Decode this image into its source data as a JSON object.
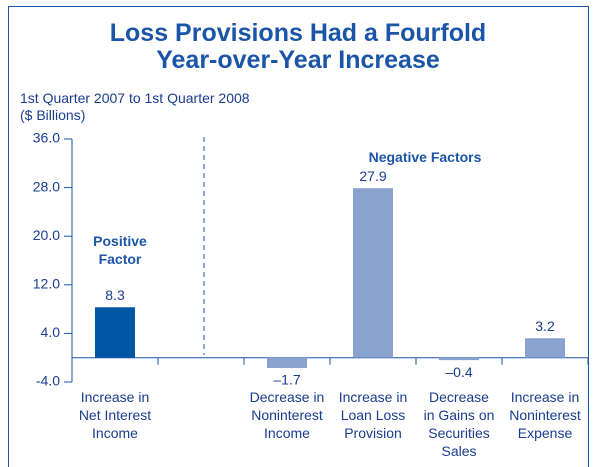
{
  "chart_data": {
    "type": "bar",
    "title": "Loss Provisions Had a Fourfold\nYear-over-Year Increase",
    "subtitle": "1st Quarter 2007 to 1st Quarter 2008\n($ Billions)",
    "categories": [
      "Increase in\nNet Interest\nIncome",
      null,
      "Decrease in\nNoninterest\nIncome",
      "Increase in\nLoan Loss\nProvision",
      "Decrease\nin Gains on\nSecurities\nSales",
      "Increase in\nNoninterest\nExpense"
    ],
    "values": [
      8.3,
      null,
      -1.7,
      27.9,
      -0.4,
      3.2
    ],
    "value_labels": [
      "8.3",
      null,
      "–1.7",
      "27.9",
      "–0.4",
      "3.2"
    ],
    "colors": [
      "#0055a5",
      null,
      "#8aa2d0",
      "#8aa2d0",
      "#8aa2d0",
      "#8aa2d0"
    ],
    "annotations": [
      "Positive\nFactor",
      "Negative Factors"
    ],
    "ylim": [
      -4,
      36
    ],
    "yticks": [
      {
        "value": 36,
        "label": "36.0"
      },
      {
        "value": 28,
        "label": "28.0"
      },
      {
        "value": 20,
        "label": "20.0"
      },
      {
        "value": 12,
        "label": "12.0"
      },
      {
        "value": 4,
        "label": "4.0"
      },
      {
        "value": -4,
        "label": "-4.0"
      }
    ]
  }
}
